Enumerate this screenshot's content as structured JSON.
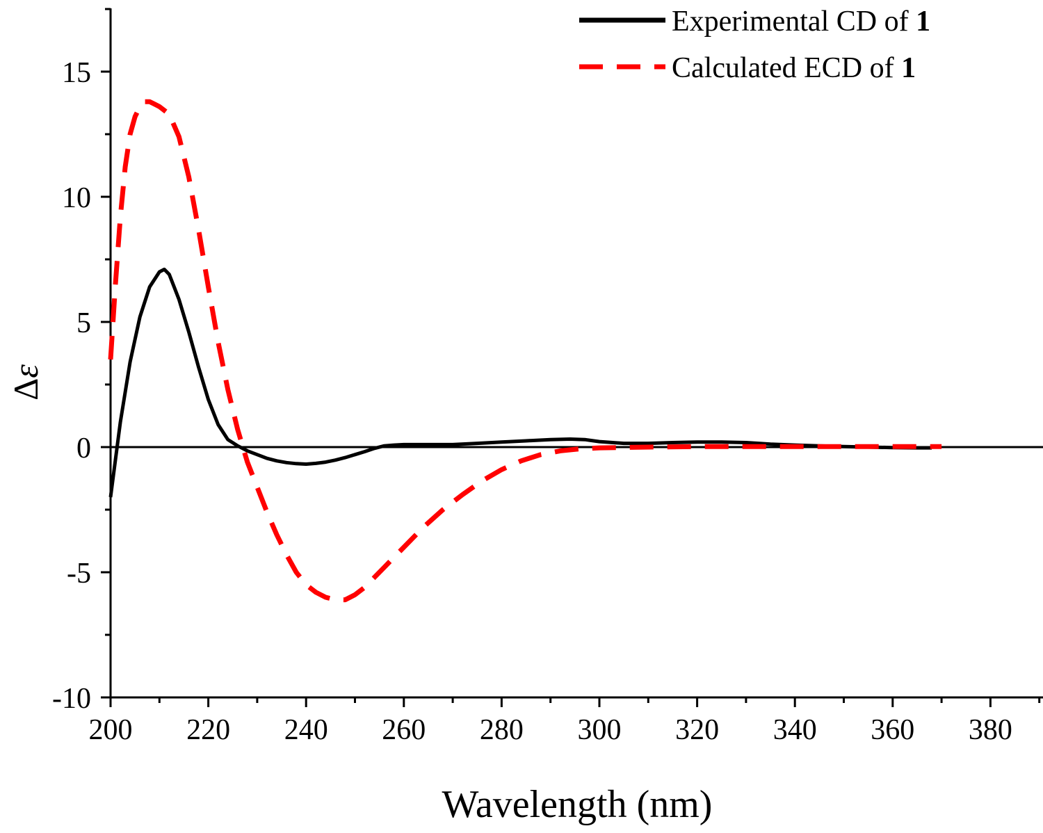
{
  "chart_data": {
    "type": "line",
    "title": "",
    "xlabel": "Wavelength (nm)",
    "ylabel_symbol": "Δ",
    "ylabel_var": "ε",
    "xlim": [
      200,
      390
    ],
    "ylim": [
      -10,
      17.5
    ],
    "x_ticks": [
      200,
      220,
      240,
      260,
      280,
      300,
      320,
      340,
      360,
      380
    ],
    "y_ticks": [
      -10,
      -5,
      0,
      5,
      10,
      15
    ],
    "x_tick_labels": [
      "200",
      "220",
      "240",
      "260",
      "280",
      "300",
      "320",
      "340",
      "360",
      "380"
    ],
    "y_tick_labels": [
      "-10",
      "-5",
      "0",
      "5",
      "10",
      "15"
    ],
    "zero_line": true,
    "grid": false,
    "legend_position": "top-right",
    "series": [
      {
        "name": "Experimental CD of 1",
        "legend_prefix": "Experimental CD of ",
        "legend_bold": "1",
        "color": "#000000",
        "style": "solid",
        "x": [
          200,
          202,
          204,
          206,
          208,
          210,
          211,
          212,
          214,
          216,
          218,
          220,
          222,
          224,
          226,
          228,
          230,
          232,
          234,
          236,
          238,
          240,
          242,
          244,
          246,
          248,
          250,
          252,
          254,
          256,
          258,
          260,
          265,
          270,
          275,
          280,
          285,
          290,
          294,
          297,
          300,
          305,
          310,
          315,
          320,
          325,
          330,
          335,
          340,
          345,
          350,
          355,
          360,
          365,
          368
        ],
        "y": [
          -2.0,
          1.0,
          3.4,
          5.2,
          6.4,
          7.0,
          7.1,
          6.9,
          5.9,
          4.6,
          3.2,
          1.9,
          0.9,
          0.3,
          0.05,
          -0.15,
          -0.3,
          -0.45,
          -0.55,
          -0.62,
          -0.66,
          -0.68,
          -0.65,
          -0.6,
          -0.52,
          -0.42,
          -0.3,
          -0.18,
          -0.05,
          0.05,
          0.08,
          0.1,
          0.1,
          0.1,
          0.15,
          0.2,
          0.25,
          0.3,
          0.32,
          0.3,
          0.22,
          0.15,
          0.15,
          0.18,
          0.2,
          0.2,
          0.18,
          0.12,
          0.08,
          0.05,
          0.02,
          0.0,
          -0.02,
          -0.03,
          -0.03
        ]
      },
      {
        "name": "Calculated ECD of 1",
        "legend_prefix": "Calculated ECD of ",
        "legend_bold": "1",
        "color": "#ff0000",
        "style": "dashed",
        "x": [
          200,
          201,
          202,
          203,
          204,
          205,
          206,
          207,
          208,
          209,
          210,
          212,
          214,
          216,
          218,
          220,
          222,
          224,
          226,
          228,
          230,
          232,
          234,
          236,
          238,
          240,
          242,
          244,
          246,
          248,
          250,
          252,
          254,
          256,
          258,
          260,
          264,
          268,
          272,
          276,
          280,
          284,
          288,
          292,
          296,
          300,
          310,
          320,
          330,
          340,
          350,
          360,
          370
        ],
        "y": [
          3.5,
          6.5,
          9.2,
          11.2,
          12.5,
          13.2,
          13.6,
          13.8,
          13.8,
          13.7,
          13.6,
          13.3,
          12.4,
          10.8,
          8.7,
          6.4,
          4.2,
          2.3,
          0.7,
          -0.6,
          -1.6,
          -2.6,
          -3.5,
          -4.3,
          -5.0,
          -5.5,
          -5.8,
          -6.0,
          -6.1,
          -6.1,
          -5.9,
          -5.6,
          -5.2,
          -4.8,
          -4.4,
          -4.0,
          -3.2,
          -2.5,
          -1.9,
          -1.35,
          -0.9,
          -0.55,
          -0.3,
          -0.15,
          -0.07,
          -0.03,
          0.0,
          0.02,
          0.02,
          0.02,
          0.02,
          0.02,
          0.02
        ]
      }
    ]
  }
}
